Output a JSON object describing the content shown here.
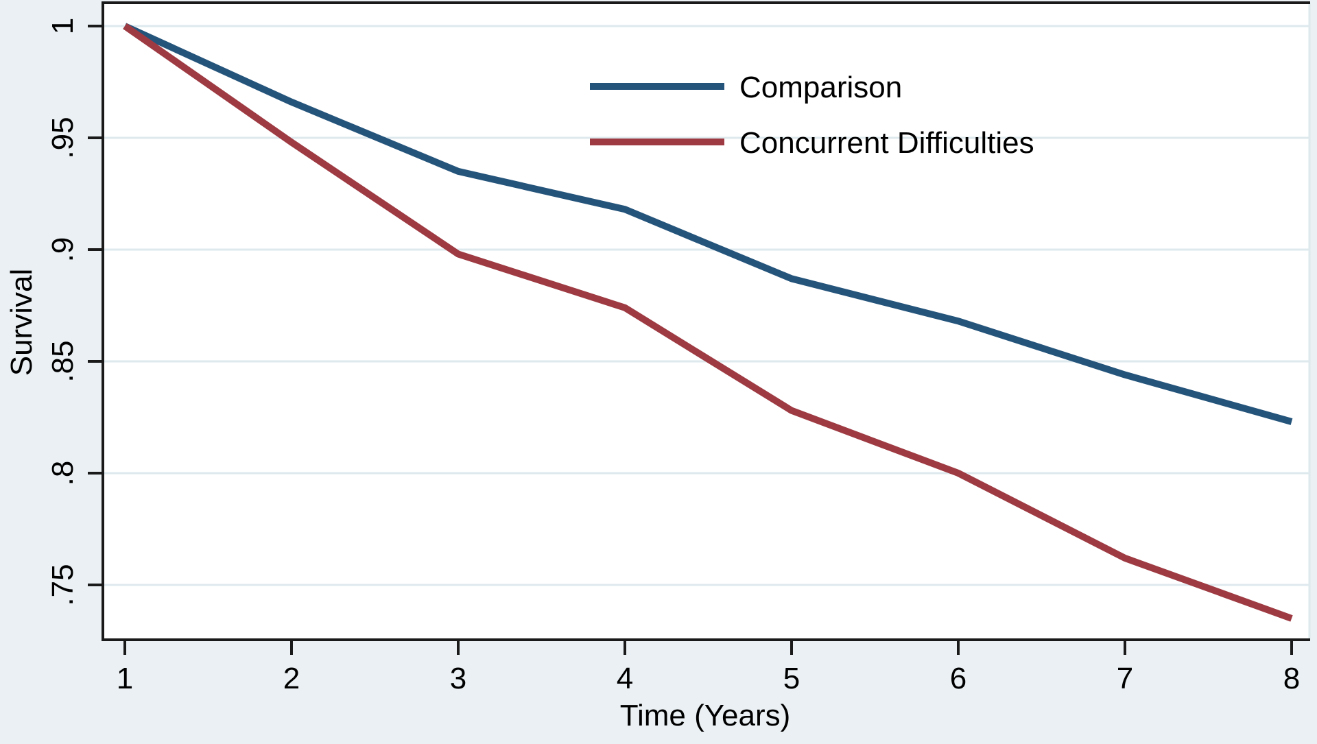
{
  "page": {
    "background": "#eaf0f3"
  },
  "chart_data": {
    "type": "line",
    "title": "",
    "xlabel": "Time (Years)",
    "ylabel": "Survival",
    "x": [
      1,
      2,
      3,
      4,
      5,
      6,
      7,
      8
    ],
    "xticks": [
      "1",
      "2",
      "3",
      "4",
      "5",
      "6",
      "7",
      "8"
    ],
    "yticks": [
      {
        "value": 1.0,
        "label": "1"
      },
      {
        "value": 0.95,
        "label": ".95"
      },
      {
        "value": 0.9,
        "label": ".9"
      },
      {
        "value": 0.85,
        "label": ".85"
      },
      {
        "value": 0.8,
        "label": ".8"
      },
      {
        "value": 0.75,
        "label": ".75"
      }
    ],
    "xlim": [
      0.87,
      8.11
    ],
    "ylim": [
      0.7255,
      1.0104
    ],
    "grid": "horizontal",
    "legend_position": "top-center-inside",
    "series": [
      {
        "name": "Comparison",
        "color": "#25547b",
        "values": [
          1.0,
          0.966,
          0.935,
          0.918,
          0.887,
          0.868,
          0.844,
          0.823
        ]
      },
      {
        "name": "Concurrent Difficulties",
        "color": "#9e3a42",
        "values": [
          1.0,
          0.948,
          0.898,
          0.874,
          0.828,
          0.8,
          0.762,
          0.735
        ]
      }
    ],
    "axis_color": "#1a1a1a",
    "gridline_color": "#dee9ee",
    "plot_bg": "#ffffff"
  }
}
